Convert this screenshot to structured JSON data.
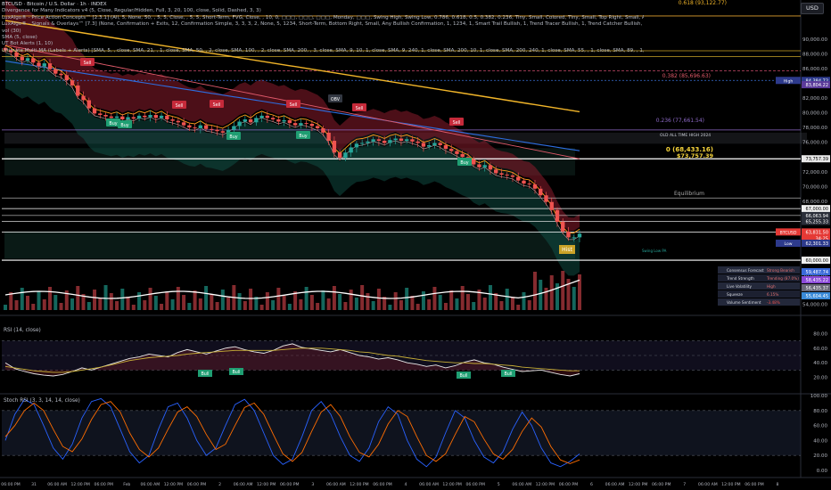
{
  "header": {
    "lines": [
      "BTCUSD · Bitcoin / U.S. Dollar · 1h · INDEX",
      "Divergence for Many Indicators v4 (5, Close, Regular/Hidden, Full, 3, 20, 100, close, Solid, Dashed, 3, 3)",
      "LuxAlgo® - Price Action Concepts™ [2.3.1] (All, 5, None, 50, , 5, 5, Close, , 5, 5, Short-Term, FVG, Close, , 10, 0, ▢▢▢, ▢▢▢, ▢▢▢, Monday, ▢▢▢, Swing High, Swing Low, 0.786, 0.618, 0.5, 0.382, 0.236, Tiny, Small, Colored, Tiny, Small, Top Right, Small, Any Internal, 1, Bullish OB, 1, Any New Imbalance, 1, Bullish Trendline Break, 1, Rising Wedge, 1, Any I",
      "LuxAlgo® - Signals & Overlays™ [7.3] (None, Confirmation + Exits, 12, Confirmation Simple, 3, 3, 3, 2, None, 5, 1234, Short-Term, Bottom Right, Small, Any Bullish Confirmation, 1, 1234, 1, Smart Trail Bullish, 1, Trend Tracer Bullish, 1, Trend Catcher Bullish, 1, Neo Cloud Bullish, 1, Within Upper Zone [R1-R3], 1, Greater Than, 50, 1, close, Equal, open,",
      "vol (30)",
      "SMA (5, close)",
      "UT Bot Alerts (1, 10)",
      "Ultimate Multi-MA (Labels + Alerts) [SMA, 5, , close, SMA, 21, , 1, close, SMA, 50, , 2, close, SMA, 100, , 2, close, SMA, 200, , 3, close, SMA, 9, 10, 1, close, SMA, 9, 240, 1, close, SMA, 200, 10, 1, close, SMA, 200, 240, 1, close, SMA, 55, , 1, close, SMA, 89, , 1, close, SMA, 144, , 1, close, SMA, 377, , 1, close, SMA, 500, , 2, close, SMA, 1,000, , 2, close]"
    ],
    "currency_button": "USD"
  },
  "colors": {
    "bull": "#26a69a",
    "bear": "#ef5350",
    "rsi_line": "#e8e8e8",
    "rsi_ma": "#c9b037",
    "stoch_k": "#2962ff",
    "stoch_d": "#ff6d00"
  },
  "chart_data": [
    {
      "type": "line",
      "panel": "price",
      "y_ticks": [
        "90,000.00",
        "88,000.00",
        "86,000.00",
        "82,000.00",
        "80,000.00",
        "78,000.00",
        "76,000.00",
        "72,000.00",
        "70,000.00",
        "68,000.00",
        "66,000.00",
        "64,000.00",
        "60,000.00",
        "58,000.00",
        "56,000.00",
        "54,000.00"
      ],
      "ylim": [
        53000,
        93600
      ],
      "x_tick_labels": [
        "06:00 PM",
        "31",
        "06:00 AM",
        "12:00 PM",
        "06:00 PM",
        "Feb",
        "06:00 AM",
        "12:00 PM",
        "06:00 PM",
        "2",
        "06:00 AM",
        "12:00 PM",
        "06:00 PM",
        "3",
        "06:00 AM",
        "12:00 PM",
        "06:00 PM",
        "4",
        "06:00 AM",
        "12:00 PM",
        "06:00 PM",
        "5",
        "06:00 AM",
        "12:00 PM",
        "06:00 PM",
        "6",
        "06:00 AM",
        "12:00 PM",
        "06:00 PM",
        "7",
        "06:00 AM",
        "12:00 PM",
        "06:00 PM",
        "8"
      ],
      "close": [
        88500,
        88200,
        87600,
        87100,
        87400,
        86800,
        86300,
        86700,
        85900,
        85300,
        85100,
        84400,
        83700,
        82300,
        81700,
        80600,
        79900,
        79700,
        79500,
        79300,
        79500,
        79100,
        79400,
        79200,
        79600,
        79400,
        79700,
        79300,
        79600,
        79100,
        78900,
        78700,
        78300,
        78000,
        77900,
        78300,
        77800,
        77700,
        77500,
        77300,
        77700,
        78200,
        78800,
        79100,
        78700,
        79300,
        79600,
        79300,
        79100,
        78800,
        79000,
        78600,
        78300,
        78600,
        78500,
        78200,
        77900,
        77300,
        76200,
        74600,
        73900,
        74600,
        75300,
        75800,
        75900,
        76100,
        76400,
        76200,
        75900,
        76300,
        76500,
        76200,
        76400,
        76100,
        75900,
        75400,
        75600,
        75900,
        75600,
        75100,
        74800,
        74400,
        74000,
        73700,
        73000,
        72600,
        72900,
        72300,
        71800,
        71600,
        71500,
        71300,
        70800,
        70400,
        70300,
        69700,
        68800,
        67900,
        66800,
        65200,
        63900,
        63100,
        63100,
        63600
      ],
      "annotations": [
        {
          "text": "0.618 (93,122.77)"
        },
        {
          "text": "0.382 (85,696.63)"
        },
        {
          "text": "0.236 (77,661.54)"
        },
        {
          "text": "0 (68,433.16)"
        },
        {
          "text": "$73,757.39"
        },
        {
          "text": "OLD ALL TIME HIGH 2024"
        },
        {
          "text": "Equilibrium"
        },
        {
          "text": "Swing Low PA"
        },
        {
          "text": "Hist"
        }
      ],
      "price_labels": [
        {
          "text": "High",
          "value": "84,384.72"
        },
        {
          "text": "",
          "value": "83,804.22"
        },
        {
          "text": "",
          "value": "73,757.39"
        },
        {
          "text": "",
          "value": "67,000.00"
        },
        {
          "text": "",
          "value": "66,063.94"
        },
        {
          "text": "",
          "value": "65,255.33"
        },
        {
          "text": "",
          "value": "63,800.00"
        },
        {
          "text": "BTCUSD",
          "value": "63,831.50"
        },
        {
          "text": "",
          "value": "34:25"
        },
        {
          "text": "Low",
          "value": "62,301.33"
        },
        {
          "text": "",
          "value": "60,000.00"
        }
      ],
      "dashboard": [
        {
          "label": "Consensus Forecast",
          "value": "Strong Bearish"
        },
        {
          "label": "Trend Strength",
          "value": "Trending (87.0%)"
        },
        {
          "label": "Live Volatility",
          "value": "High"
        },
        {
          "label": "Squeeze",
          "value": "6.15%"
        },
        {
          "label": "Volume Sentiment",
          "value": "-3.48%"
        }
      ],
      "dashboard_side_values": [
        "59,487.74",
        "58,435.22",
        "56,435.37",
        "55,604.45"
      ],
      "signals": [
        {
          "text": "Buy"
        },
        {
          "text": "Sell"
        },
        {
          "text": "Sell"
        },
        {
          "text": "Buy"
        },
        {
          "text": "Sell"
        },
        {
          "text": "Sell"
        },
        {
          "text": "Buy"
        },
        {
          "text": "OBV"
        },
        {
          "text": "Buy"
        },
        {
          "text": "Sell"
        },
        {
          "text": "Sell"
        },
        {
          "text": "Buy"
        }
      ]
    },
    {
      "type": "line",
      "panel": "rsi",
      "title": "RSI (14, close)",
      "ylim": [
        0,
        100
      ],
      "y_ticks": [
        "80.00",
        "60.00",
        "40.00",
        "20.00"
      ],
      "rsi": [
        40,
        32,
        28,
        25,
        23,
        22,
        24,
        28,
        33,
        30,
        34,
        38,
        42,
        46,
        48,
        52,
        50,
        48,
        54,
        58,
        55,
        52,
        56,
        60,
        62,
        58,
        55,
        53,
        57,
        63,
        66,
        61,
        59,
        57,
        55,
        58,
        54,
        50,
        48,
        45,
        47,
        44,
        40,
        38,
        35,
        37,
        33,
        36,
        41,
        44,
        40,
        38,
        34,
        31,
        28,
        29,
        30,
        27,
        24,
        22,
        25
      ],
      "rsi_ma": [
        35,
        33,
        31,
        29,
        28,
        27,
        27,
        28,
        30,
        32,
        34,
        37,
        40,
        43,
        45,
        47,
        48,
        49,
        50,
        52,
        53,
        54,
        55,
        56,
        57,
        57,
        57,
        57,
        57,
        58,
        59,
        60,
        60,
        60,
        59,
        58,
        57,
        55,
        54,
        52,
        50,
        49,
        47,
        45,
        43,
        42,
        41,
        40,
        40,
        39,
        39,
        38,
        37,
        36,
        34,
        33,
        32,
        31,
        30,
        29,
        29
      ],
      "labels": [
        "Bull",
        "Bull",
        "Bull",
        "Bull"
      ]
    },
    {
      "type": "line",
      "panel": "stoch",
      "title": "Stoch RSI (3, 3, 14, 14, close)",
      "ylim": [
        0,
        100
      ],
      "y_ticks": [
        "100.00",
        "80.00",
        "60.00",
        "40.00",
        "20.00",
        "0.00"
      ],
      "k": [
        40,
        75,
        95,
        88,
        60,
        30,
        15,
        35,
        70,
        92,
        96,
        85,
        55,
        25,
        10,
        20,
        55,
        85,
        90,
        70,
        40,
        20,
        30,
        60,
        88,
        95,
        80,
        50,
        20,
        8,
        15,
        45,
        80,
        92,
        75,
        45,
        20,
        12,
        30,
        65,
        85,
        75,
        40,
        15,
        5,
        18,
        50,
        80,
        70,
        40,
        18,
        10,
        25,
        55,
        78,
        60,
        30,
        10,
        5,
        12,
        22
      ],
      "d": [
        45,
        60,
        80,
        90,
        80,
        55,
        32,
        25,
        42,
        68,
        88,
        92,
        78,
        50,
        28,
        18,
        30,
        55,
        78,
        85,
        72,
        48,
        28,
        35,
        60,
        84,
        90,
        75,
        48,
        22,
        12,
        24,
        52,
        78,
        88,
        72,
        45,
        24,
        18,
        35,
        62,
        80,
        72,
        45,
        20,
        12,
        22,
        48,
        72,
        65,
        42,
        22,
        15,
        28,
        52,
        70,
        58,
        32,
        14,
        9,
        14
      ],
      "labels": []
    }
  ]
}
